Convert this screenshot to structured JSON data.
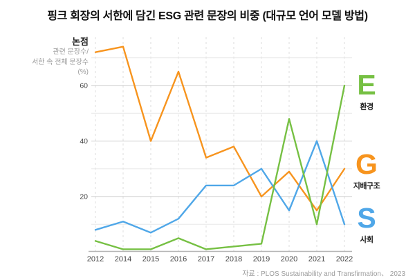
{
  "title": "핑크 회장의 서한에 담긴 ESG 관련 문장의 비중 (대규모 언어 모델 방법)",
  "y_axis": {
    "header": "논점",
    "unit_lines": [
      "관련 문장수/",
      "서한 속 전체 문장수",
      "(%)"
    ]
  },
  "source": "자료 : PLOS Sustainability and Transfirmation、 2023",
  "legend": [
    {
      "letter": "E",
      "label": "환경",
      "color": "#76C043"
    },
    {
      "letter": "G",
      "label": "지배구조",
      "color": "#F7941E"
    },
    {
      "letter": "S",
      "label": "사회",
      "color": "#4FA7E8"
    }
  ],
  "chart_data": {
    "type": "line",
    "title": "핑크 회장의 서한에 담긴 ESG 관련 문장의 비중 (대규모 언어 모델 방법)",
    "ylabel": "논점 관련 문장수/서한 속 전체 문장수 (%)",
    "categories": [
      "2012",
      "2014",
      "2015",
      "2016",
      "2017",
      "2018",
      "2019",
      "2020",
      "2021",
      "2022"
    ],
    "series": [
      {
        "name": "E 환경",
        "color": "#76C043",
        "values": [
          4,
          1,
          1,
          5,
          1,
          2,
          3,
          48,
          10,
          60
        ]
      },
      {
        "name": "G 지배구조",
        "color": "#F7941E",
        "values": [
          72,
          74,
          40,
          65,
          34,
          38,
          20,
          29,
          15,
          30
        ]
      },
      {
        "name": "S 사회",
        "color": "#4FA7E8",
        "values": [
          8,
          11,
          7,
          12,
          24,
          24,
          30,
          15,
          40,
          10
        ]
      }
    ],
    "ylim": [
      0,
      77
    ],
    "yticks_labeled": [
      20,
      40,
      60
    ],
    "gridline_values": [
      10,
      20,
      30,
      40,
      50,
      60,
      70
    ],
    "grid": true,
    "x_gridlines": "dashed-vertical-per-category",
    "legend_position": "right",
    "source": "자료 : PLOS Sustainability and Transfirmation、 2023"
  },
  "colors": {
    "grid_major": "#c9c9c9",
    "grid_minor": "#e8e8e8",
    "grid_vertical_dashed": "#dcdcdc",
    "axis_line": "#b3b3b3",
    "tick_text": "#454545"
  }
}
